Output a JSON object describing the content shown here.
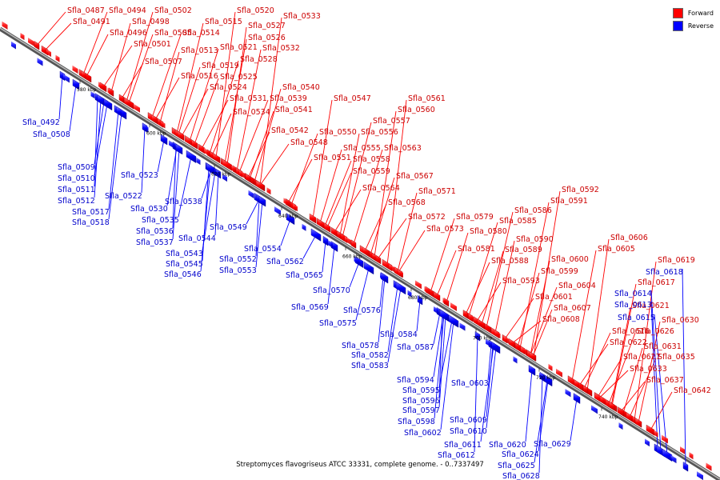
{
  "legend": {
    "forward": {
      "label": "Forward",
      "color": "#ff0000"
    },
    "reverse": {
      "label": "Reverse",
      "color": "#0000ff"
    }
  },
  "caption": "Streptomyces flavogriseus ATCC 33331, complete genome. - 0..7337497",
  "ticks": [
    "580 kbp",
    "600 kbp",
    "620 kbp",
    "640 kbp",
    "660 kbp",
    "680 kbp",
    "700 kbp",
    "720 kbp",
    "740 kbp"
  ],
  "forward_genes": [
    "Sfla_0487",
    "Sfla_0491",
    "Sfla_0494",
    "Sfla_0496",
    "Sfla_0498",
    "Sfla_0501",
    "Sfla_0502",
    "Sfla_0505",
    "Sfla_0507",
    "Sfla_0513",
    "Sfla_0514",
    "Sfla_0515",
    "Sfla_0516",
    "Sfla_0519",
    "Sfla_0520",
    "Sfla_0521",
    "Sfla_0524",
    "Sfla_0525",
    "Sfla_0526",
    "Sfla_0527",
    "Sfla_0528",
    "Sfla_0531",
    "Sfla_0532",
    "Sfla_0533",
    "Sfla_0534",
    "Sfla_0539",
    "Sfla_0540",
    "Sfla_0541",
    "Sfla_0542",
    "Sfla_0547",
    "Sfla_0548",
    "Sfla_0550",
    "Sfla_0551",
    "Sfla_0555",
    "Sfla_0556",
    "Sfla_0557",
    "Sfla_0558",
    "Sfla_0559",
    "Sfla_0560",
    "Sfla_0561",
    "Sfla_0563",
    "Sfla_0564",
    "Sfla_0567",
    "Sfla_0568",
    "Sfla_0571",
    "Sfla_0572",
    "Sfla_0573",
    "Sfla_0579",
    "Sfla_0580",
    "Sfla_0581",
    "Sfla_0585",
    "Sfla_0586",
    "Sfla_0588",
    "Sfla_0589",
    "Sfla_0590",
    "Sfla_0591",
    "Sfla_0592",
    "Sfla_0593",
    "Sfla_0599",
    "Sfla_0600",
    "Sfla_0601",
    "Sfla_0604",
    "Sfla_0605",
    "Sfla_0606",
    "Sfla_0607",
    "Sfla_0608",
    "Sfla_0616",
    "Sfla_0617",
    "Sfla_0619",
    "Sfla_0621",
    "Sfla_0622",
    "Sfla_0626",
    "Sfla_0627",
    "Sfla_0630",
    "Sfla_0631",
    "Sfla_0633",
    "Sfla_0635",
    "Sfla_0637",
    "Sfla_0642"
  ],
  "reverse_genes": [
    "Sfla_0492",
    "Sfla_0508",
    "Sfla_0509",
    "Sfla_0510",
    "Sfla_0511",
    "Sfla_0512",
    "Sfla_0517",
    "Sfla_0518",
    "Sfla_0522",
    "Sfla_0523",
    "Sfla_0530",
    "Sfla_0535",
    "Sfla_0536",
    "Sfla_0537",
    "Sfla_0538",
    "Sfla_0543",
    "Sfla_0544",
    "Sfla_0545",
    "Sfla_0546",
    "Sfla_0549",
    "Sfla_0552",
    "Sfla_0553",
    "Sfla_0554",
    "Sfla_0562",
    "Sfla_0565",
    "Sfla_0569",
    "Sfla_0570",
    "Sfla_0575",
    "Sfla_0576",
    "Sfla_0578",
    "Sfla_0582",
    "Sfla_0583",
    "Sfla_0584",
    "Sfla_0587",
    "Sfla_0594",
    "Sfla_0595",
    "Sfla_0596",
    "Sfla_0597",
    "Sfla_0598",
    "Sfla_0602",
    "Sfla_0603",
    "Sfla_0609",
    "Sfla_0610",
    "Sfla_0611",
    "Sfla_0612",
    "Sfla_0613",
    "Sfla_0614",
    "Sfla_0615",
    "Sfla_0618",
    "Sfla_0620",
    "Sfla_0624",
    "Sfla_0625",
    "Sfla_0628",
    "Sfla_0629"
  ]
}
